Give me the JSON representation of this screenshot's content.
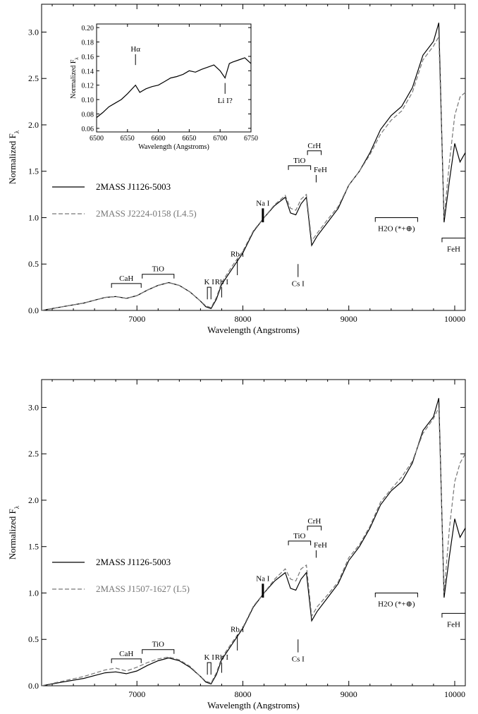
{
  "colors": {
    "axis": "#000000",
    "primary": "#000000",
    "comparison": "#777777"
  },
  "chart_data": [
    {
      "type": "line",
      "xlabel": "Wavelength (Angstroms)",
      "ylabel": "Normalized F",
      "ylabel_subscript": "λ",
      "xlim": [
        6100,
        10100
      ],
      "ylim": [
        0.0,
        3.3
      ],
      "xticks": [
        7000,
        8000,
        9000,
        10000
      ],
      "yticks": [
        "0.0",
        "0.5",
        "1.0",
        "1.5",
        "2.0",
        "2.5",
        "3.0"
      ],
      "legend_position": "middle-left",
      "series": [
        {
          "name": "2MASS J1126-5003",
          "style": "solid",
          "color": "#000000",
          "x": [
            6100,
            6300,
            6500,
            6700,
            6800,
            6900,
            7000,
            7100,
            7200,
            7300,
            7400,
            7500,
            7600,
            7650,
            7700,
            7750,
            7800,
            7900,
            8000,
            8100,
            8200,
            8300,
            8400,
            8450,
            8500,
            8550,
            8600,
            8650,
            8700,
            8800,
            8900,
            9000,
            9100,
            9200,
            9300,
            9400,
            9500,
            9600,
            9700,
            9800,
            9850,
            9900,
            9950,
            10000,
            10050,
            10100
          ],
          "y": [
            0.0,
            0.04,
            0.08,
            0.14,
            0.15,
            0.13,
            0.16,
            0.22,
            0.27,
            0.3,
            0.27,
            0.2,
            0.1,
            0.04,
            0.02,
            0.12,
            0.28,
            0.45,
            0.62,
            0.85,
            1.0,
            1.13,
            1.22,
            1.05,
            1.03,
            1.15,
            1.22,
            0.7,
            0.8,
            0.95,
            1.1,
            1.35,
            1.5,
            1.7,
            1.95,
            2.1,
            2.2,
            2.4,
            2.75,
            2.9,
            3.1,
            0.95,
            1.4,
            1.8,
            1.6,
            1.7
          ]
        },
        {
          "name": "2MASS J2224-0158 (L4.5)",
          "style": "dashed",
          "color": "#777777",
          "x": [
            6100,
            6300,
            6500,
            6700,
            6800,
            6900,
            7000,
            7100,
            7200,
            7300,
            7400,
            7500,
            7600,
            7650,
            7700,
            7750,
            7800,
            7900,
            8000,
            8100,
            8200,
            8300,
            8400,
            8450,
            8500,
            8550,
            8600,
            8650,
            8700,
            8800,
            8900,
            9000,
            9100,
            9200,
            9300,
            9400,
            9500,
            9600,
            9700,
            9800,
            9850,
            9900,
            9950,
            10000,
            10050,
            10100
          ],
          "y": [
            0.0,
            0.04,
            0.08,
            0.14,
            0.15,
            0.13,
            0.16,
            0.22,
            0.27,
            0.3,
            0.27,
            0.2,
            0.1,
            0.05,
            0.03,
            0.14,
            0.3,
            0.48,
            0.64,
            0.86,
            1.0,
            1.14,
            1.24,
            1.1,
            1.08,
            1.2,
            1.25,
            0.75,
            0.83,
            0.98,
            1.12,
            1.35,
            1.5,
            1.68,
            1.9,
            2.05,
            2.15,
            2.35,
            2.7,
            2.85,
            2.95,
            1.0,
            1.6,
            2.1,
            2.3,
            2.35
          ]
        }
      ],
      "annotations": [
        "CaH",
        "TiO",
        "K I",
        "Rb I",
        "Rb I",
        "Na I",
        "Cs I",
        "TiO",
        "CrH",
        "FeH",
        "H2O (*+⊕)",
        "FeH"
      ],
      "inset": {
        "type": "line",
        "xlabel": "Wavelength (Angstroms)",
        "ylabel": "Normalized F",
        "ylabel_subscript": "λ",
        "xlim": [
          6500,
          6750
        ],
        "ylim": [
          0.055,
          0.205
        ],
        "xticks": [
          6500,
          6550,
          6600,
          6650,
          6700,
          6750
        ],
        "yticks": [
          "0.06",
          "0.08",
          "0.10",
          "0.12",
          "0.14",
          "0.16",
          "0.18",
          "0.20"
        ],
        "annotations": [
          "Hα",
          "Li I?"
        ],
        "series": [
          {
            "name": "",
            "style": "solid",
            "x": [
              6500,
              6510,
              6520,
              6530,
              6540,
              6550,
              6563,
              6570,
              6580,
              6590,
              6600,
              6610,
              6620,
              6630,
              6640,
              6650,
              6660,
              6670,
              6680,
              6690,
              6700,
              6708,
              6715,
              6720,
              6730,
              6740,
              6750
            ],
            "y": [
              0.075,
              0.082,
              0.09,
              0.095,
              0.1,
              0.108,
              0.12,
              0.11,
              0.115,
              0.118,
              0.12,
              0.125,
              0.13,
              0.132,
              0.135,
              0.14,
              0.138,
              0.142,
              0.145,
              0.148,
              0.14,
              0.13,
              0.15,
              0.152,
              0.155,
              0.158,
              0.15
            ]
          }
        ]
      }
    },
    {
      "type": "line",
      "xlabel": "Wavelength (Angstroms)",
      "ylabel": "Normalized F",
      "ylabel_subscript": "λ",
      "xlim": [
        6100,
        10100
      ],
      "ylim": [
        0.0,
        3.3
      ],
      "xticks": [
        7000,
        8000,
        9000,
        10000
      ],
      "yticks": [
        "0.0",
        "0.5",
        "1.0",
        "1.5",
        "2.0",
        "2.5",
        "3.0"
      ],
      "legend_position": "middle-left",
      "series": [
        {
          "name": "2MASS J1126-5003",
          "style": "solid",
          "color": "#000000",
          "x": [
            6100,
            6300,
            6500,
            6700,
            6800,
            6900,
            7000,
            7100,
            7200,
            7300,
            7400,
            7500,
            7600,
            7650,
            7700,
            7750,
            7800,
            7900,
            8000,
            8100,
            8200,
            8300,
            8400,
            8450,
            8500,
            8550,
            8600,
            8650,
            8700,
            8800,
            8900,
            9000,
            9100,
            9200,
            9300,
            9400,
            9500,
            9600,
            9700,
            9800,
            9850,
            9900,
            9950,
            10000,
            10050,
            10100
          ],
          "y": [
            0.0,
            0.04,
            0.08,
            0.14,
            0.15,
            0.13,
            0.16,
            0.22,
            0.27,
            0.3,
            0.27,
            0.2,
            0.1,
            0.04,
            0.02,
            0.12,
            0.28,
            0.45,
            0.62,
            0.85,
            1.0,
            1.13,
            1.22,
            1.05,
            1.03,
            1.15,
            1.22,
            0.7,
            0.8,
            0.95,
            1.1,
            1.35,
            1.5,
            1.7,
            1.95,
            2.1,
            2.2,
            2.4,
            2.75,
            2.9,
            3.1,
            0.95,
            1.4,
            1.8,
            1.6,
            1.7
          ]
        },
        {
          "name": "2MASS J1507-1627 (L5)",
          "style": "dashed",
          "color": "#777777",
          "x": [
            6100,
            6300,
            6500,
            6700,
            6800,
            6900,
            7000,
            7100,
            7200,
            7300,
            7400,
            7500,
            7600,
            7650,
            7700,
            7750,
            7800,
            7900,
            8000,
            8100,
            8200,
            8300,
            8400,
            8450,
            8500,
            8550,
            8600,
            8650,
            8700,
            8800,
            8900,
            9000,
            9100,
            9200,
            9300,
            9400,
            9500,
            9600,
            9700,
            9800,
            9850,
            9900,
            9950,
            10000,
            10050,
            10100
          ],
          "y": [
            0.0,
            0.05,
            0.1,
            0.17,
            0.19,
            0.16,
            0.2,
            0.25,
            0.29,
            0.31,
            0.28,
            0.21,
            0.1,
            0.05,
            0.03,
            0.14,
            0.3,
            0.47,
            0.63,
            0.86,
            1.0,
            1.15,
            1.26,
            1.15,
            1.13,
            1.26,
            1.3,
            0.75,
            0.85,
            0.98,
            1.12,
            1.38,
            1.52,
            1.72,
            1.98,
            2.12,
            2.25,
            2.42,
            2.72,
            2.88,
            3.0,
            1.0,
            1.7,
            2.2,
            2.4,
            2.5
          ]
        }
      ],
      "annotations": [
        "CaH",
        "TiO",
        "K I",
        "Rb I",
        "Rb I",
        "Na I",
        "Cs I",
        "TiO",
        "CrH",
        "FeH",
        "H2O (*+⊕)",
        "FeH"
      ]
    }
  ]
}
